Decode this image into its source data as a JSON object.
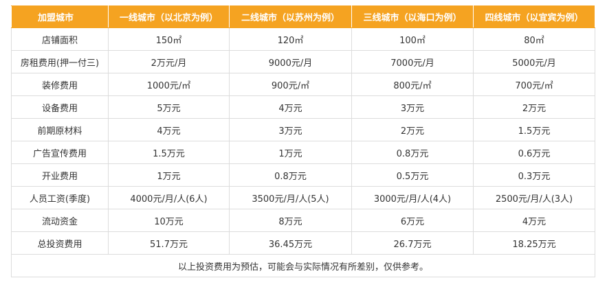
{
  "table": {
    "header": [
      "加盟城市",
      "一线城市（以北京为例）",
      "二线城市（以苏州为例）",
      "三线城市（以海口为例）",
      "四线城市（以宜宾为例）"
    ],
    "rows": [
      [
        "店铺面积",
        "150㎡",
        "120㎡",
        "100㎡",
        "80㎡"
      ],
      [
        "房租费用(押一付三)",
        "2万元/月",
        "9000元/月",
        "7000元/月",
        "5000元/月"
      ],
      [
        "装修费用",
        "1000元/㎡",
        "900元/㎡",
        "800元/㎡",
        "700元/㎡"
      ],
      [
        "设备费用",
        "5万元",
        "4万元",
        "3万元",
        "2万元"
      ],
      [
        "前期原材料",
        "4万元",
        "3万元",
        "2万元",
        "1.5万元"
      ],
      [
        "广告宣传费用",
        "1.5万元",
        "1万元",
        "0.8万元",
        "0.6万元"
      ],
      [
        "开业费用",
        "1万元",
        "0.8万元",
        "0.5万元",
        "0.3万元"
      ],
      [
        "人员工资(季度)",
        "4000元/月/人(6人)",
        "3500元/月/人(5人)",
        "3000元/月/人(4人)",
        "2500元/月/人(3人)"
      ],
      [
        "流动资金",
        "10万元",
        "8万元",
        "6万元",
        "4万元"
      ],
      [
        "总投资费用",
        "51.7万元",
        "36.45万元",
        "26.7万元",
        "18.25万元"
      ]
    ],
    "note": "以上投资费用为预估，可能会与实际情况有所差别，仅供参考。"
  }
}
